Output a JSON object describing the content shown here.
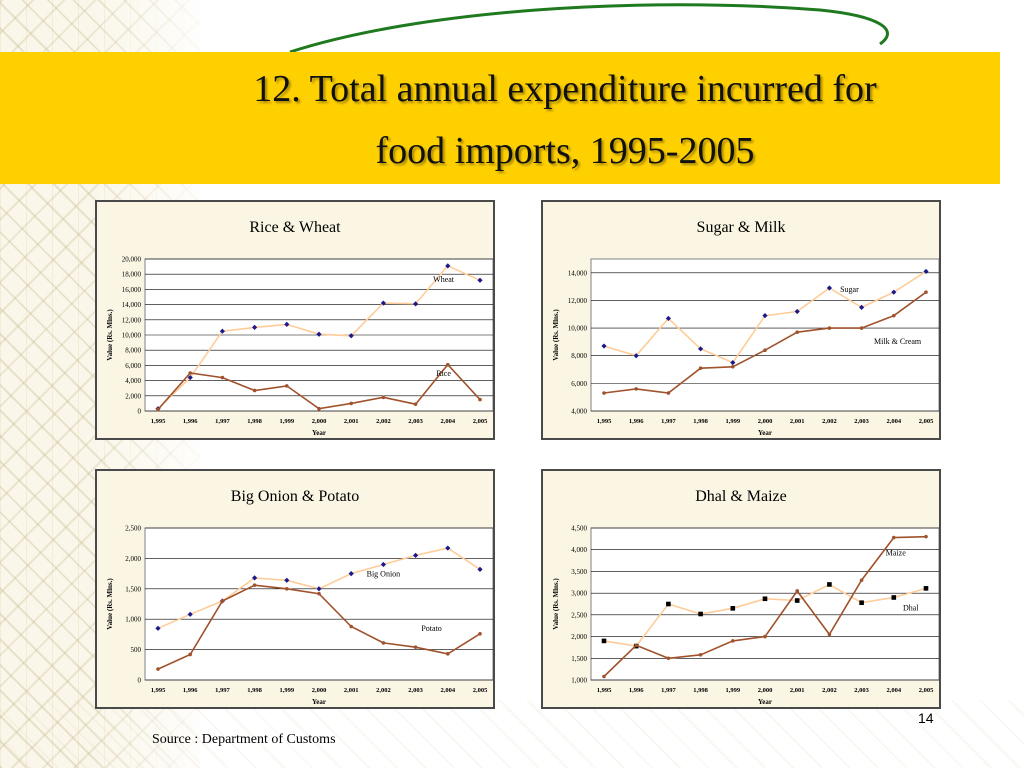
{
  "slide": {
    "title_line1": "12. Total annual expenditure incurred for",
    "title_line2": "food imports, 1995-2005",
    "source": "Source : Department of Customs",
    "page_number": "14"
  },
  "colors": {
    "banner": "#ffd000",
    "swoosh": "#1f7a1f",
    "panel_bg": "#faf6e3",
    "plot_bg": "#ffffff",
    "dark_line": "#a0522d",
    "light_line": "#ffcc99",
    "blue_marker": "#1a1a8a",
    "black_marker": "#000000"
  },
  "chart_data": [
    {
      "type": "line",
      "title": "Rice & Wheat",
      "xlabel": "Year",
      "ylabel": "Value (Rs. Mlns.)",
      "categories": [
        "1,995",
        "1,996",
        "1,997",
        "1,998",
        "1,999",
        "2,000",
        "2,001",
        "2,002",
        "2,003",
        "2,004",
        "2,005"
      ],
      "ylim": [
        0,
        20000
      ],
      "yticks": [
        "0",
        "2,000",
        "4,000",
        "6,000",
        "8,000",
        "10,000",
        "12,000",
        "14,000",
        "16,000",
        "18,000",
        "20,000"
      ],
      "ytick_values": [
        0,
        2000,
        4000,
        6000,
        8000,
        10000,
        12000,
        14000,
        16000,
        18000,
        20000
      ],
      "grid": true,
      "series": [
        {
          "name": "Wheat",
          "values": [
            300,
            4400,
            10500,
            11000,
            11400,
            10100,
            9900,
            14200,
            14100,
            19100,
            17200
          ],
          "style": "light",
          "marker": "diamond-blue"
        },
        {
          "name": "Rice",
          "values": [
            200,
            5000,
            4400,
            2700,
            3300,
            300,
            1000,
            1800,
            900,
            6100,
            1500
          ],
          "style": "dark",
          "marker": "none"
        }
      ],
      "annotations": [
        {
          "text": "Wheat",
          "series": 0,
          "index": 8
        },
        {
          "text": "Rice",
          "series": 1,
          "index": 8
        }
      ]
    },
    {
      "type": "line",
      "title": "Sugar & Milk",
      "xlabel": "Year",
      "ylabel": "Value (Rs. Mlns.)",
      "categories": [
        "1,995",
        "1,996",
        "1,997",
        "1,998",
        "1,999",
        "2,000",
        "2,001",
        "2,002",
        "2,003",
        "2,004",
        "2,005"
      ],
      "ylim": [
        4000,
        15000
      ],
      "yticks": [
        "4,000",
        "6,000",
        "8,000",
        "10,000",
        "12,000",
        "14,000"
      ],
      "ytick_values": [
        4000,
        6000,
        8000,
        10000,
        12000,
        14000
      ],
      "grid": true,
      "series": [
        {
          "name": "Sugar",
          "values": [
            8700,
            8000,
            10700,
            8500,
            7500,
            10900,
            11200,
            12900,
            11500,
            12600,
            14100
          ],
          "style": "light",
          "marker": "diamond-blue"
        },
        {
          "name": "Milk & Cream",
          "values": [
            5300,
            5600,
            5300,
            7100,
            7200,
            8400,
            9700,
            10000,
            10000,
            10900,
            12600
          ],
          "style": "dark",
          "marker": "none"
        }
      ],
      "annotations": [
        {
          "text": "Sugar",
          "series": 0,
          "index": 7
        },
        {
          "text": "Milk & Cream",
          "series": 1,
          "index": 8
        }
      ]
    },
    {
      "type": "line",
      "title": "Big Onion & Potato",
      "xlabel": "Year",
      "ylabel": "Value (Rs. Mlns.)",
      "categories": [
        "1,995",
        "1,996",
        "1,997",
        "1,998",
        "1,999",
        "2,000",
        "2,001",
        "2,002",
        "2,003",
        "2,004",
        "2,005"
      ],
      "ylim": [
        0,
        2500
      ],
      "yticks": [
        "0",
        "500",
        "1,000",
        "1,500",
        "2,000",
        "2,500"
      ],
      "ytick_values": [
        0,
        500,
        1000,
        1500,
        2000,
        2500
      ],
      "grid": true,
      "series": [
        {
          "name": "Big Onion",
          "values": [
            850,
            1080,
            1300,
            1680,
            1640,
            1500,
            1750,
            1900,
            2050,
            2170,
            1820
          ],
          "style": "light",
          "marker": "diamond-blue"
        },
        {
          "name": "Potato",
          "values": [
            180,
            420,
            1300,
            1560,
            1500,
            1420,
            880,
            610,
            540,
            430,
            760
          ],
          "style": "dark",
          "marker": "none"
        }
      ],
      "annotations": [
        {
          "text": "Big Onion",
          "series": 0,
          "index": 7
        },
        {
          "text": "Potato",
          "series": 1,
          "index": 8
        }
      ]
    },
    {
      "type": "line",
      "title": "Dhal & Maize",
      "xlabel": "Year",
      "ylabel": "Value (Rs. Mlns.)",
      "categories": [
        "1,995",
        "1,996",
        "1,997",
        "1,998",
        "1,999",
        "2,000",
        "2,001",
        "2,002",
        "2,003",
        "2,004",
        "2,005"
      ],
      "ylim": [
        1000,
        4500
      ],
      "yticks": [
        "1,000",
        "1,500",
        "2,000",
        "2,500",
        "3,000",
        "3,500",
        "4,000",
        "4,500"
      ],
      "ytick_values": [
        1000,
        1500,
        2000,
        2500,
        3000,
        3500,
        4000,
        4500
      ],
      "grid": true,
      "series": [
        {
          "name": "Dhal",
          "values": [
            1900,
            1780,
            2750,
            2520,
            2650,
            2870,
            2830,
            3200,
            2780,
            2900,
            3110
          ],
          "style": "light",
          "marker": "square-black"
        },
        {
          "name": "Maize",
          "values": [
            1080,
            1800,
            1500,
            1580,
            1900,
            2000,
            3050,
            2050,
            3300,
            4280,
            4300
          ],
          "style": "dark",
          "marker": "none"
        }
      ],
      "annotations": [
        {
          "text": "Maize",
          "series": 1,
          "index": 9
        },
        {
          "text": "Dhal",
          "series": 0,
          "index": 9
        }
      ]
    }
  ]
}
